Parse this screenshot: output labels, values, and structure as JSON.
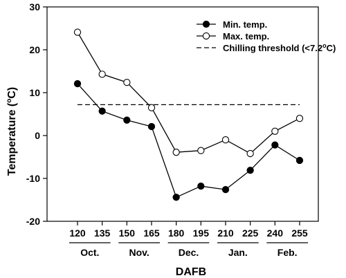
{
  "chart_data": {
    "type": "line",
    "title": "",
    "xlabel": "DAFB",
    "ylabel": "Temperature",
    "ylabel_unit": "(",
    "ylabel_unit_sup": "o",
    "ylabel_unit_end": "C)",
    "ylim": [
      -20,
      30
    ],
    "yticks": [
      -20,
      -10,
      0,
      10,
      20,
      30
    ],
    "x": [
      120,
      135,
      150,
      165,
      180,
      195,
      210,
      225,
      240,
      255
    ],
    "x_tick_labels": [
      "120",
      "135",
      "150",
      "165",
      "180",
      "195",
      "210",
      "225",
      "240",
      "255"
    ],
    "months": [
      {
        "label": "Oct.",
        "from": 120,
        "to": 135
      },
      {
        "label": "Nov.",
        "from": 150,
        "to": 165
      },
      {
        "label": "Dec.",
        "from": 180,
        "to": 195
      },
      {
        "label": "Jan.",
        "from": 210,
        "to": 225
      },
      {
        "label": "Feb.",
        "from": 240,
        "to": 255
      }
    ],
    "series": [
      {
        "name": "Min. temp.",
        "marker": "filled-circle",
        "values": [
          12.1,
          5.7,
          3.6,
          2.1,
          -14.4,
          -11.8,
          -12.6,
          -8.1,
          -2.2,
          -5.8
        ]
      },
      {
        "name": "Max. temp.",
        "marker": "open-circle",
        "values": [
          24.1,
          14.3,
          12.4,
          6.5,
          -3.9,
          -3.5,
          -1.0,
          -4.2,
          1.0,
          4.0
        ]
      }
    ],
    "threshold": {
      "name": "Chilling threshold (<7.2",
      "name_sup": "o",
      "name_end": "C)",
      "value": 7.2,
      "from": 120,
      "to": 255,
      "style": "dashed"
    },
    "legend_position": "top-right",
    "grid": false
  }
}
